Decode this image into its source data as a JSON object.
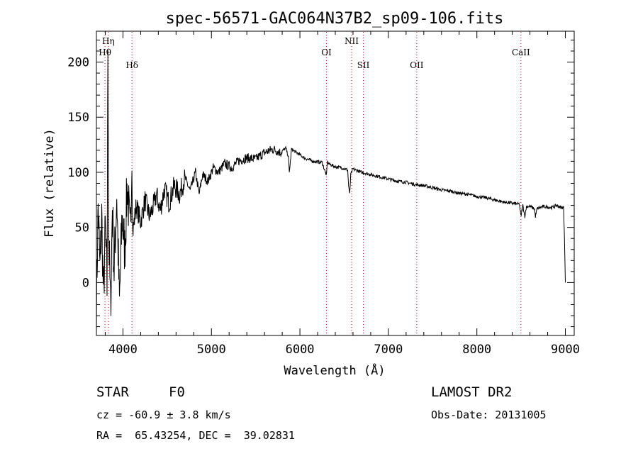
{
  "chart_data": {
    "type": "line",
    "title": "spec-56571-GAC064N37B2_sp09-106.fits",
    "xlabel": "Wavelength (Å)",
    "ylabel": "Flux (relative)",
    "xlim": [
      3700,
      9100
    ],
    "ylim": [
      -48,
      228
    ],
    "x_ticks": [
      4000,
      5000,
      6000,
      7000,
      8000,
      9000
    ],
    "y_ticks": [
      0,
      50,
      100,
      150,
      200
    ],
    "grid": false,
    "series": [
      {
        "x": [
          3700,
          3720,
          3740,
          3760,
          3780,
          3800,
          3820,
          3830,
          3840,
          3860,
          3880,
          3900,
          3930,
          3960,
          3990,
          4020,
          4050,
          4080,
          4101,
          4110,
          4150,
          4200,
          4250,
          4300,
          4340,
          4380,
          4420,
          4470,
          4520,
          4580,
          4640,
          4700,
          4760,
          4820,
          4861,
          4900,
          4960,
          5020,
          5080,
          5150,
          5230,
          5300,
          5400,
          5500,
          5600,
          5700,
          5780,
          5840,
          5870,
          5880,
          5893,
          5905,
          5920,
          5980,
          6050,
          6150,
          6250,
          6300,
          6310,
          6320,
          6400,
          6480,
          6540,
          6550,
          6563,
          6575,
          6600,
          6700,
          6800,
          6900,
          7000,
          7100,
          7200,
          7300,
          7400,
          7500,
          7600,
          7700,
          7800,
          7900,
          8000,
          8100,
          8200,
          8300,
          8400,
          8480,
          8498,
          8520,
          8542,
          8560,
          8600,
          8650,
          8662,
          8680,
          8750,
          8850,
          8900,
          8950,
          8980,
          8990,
          9000
        ],
        "y": [
          -20,
          70,
          10,
          60,
          -15,
          50,
          -5,
          220,
          40,
          -25,
          70,
          10,
          80,
          -20,
          60,
          30,
          90,
          40,
          110,
          45,
          70,
          55,
          75,
          60,
          68,
          80,
          65,
          85,
          72,
          88,
          80,
          95,
          83,
          100,
          80,
          98,
          92,
          104,
          100,
          108,
          104,
          110,
          113,
          112,
          118,
          121,
          118,
          122,
          114,
          100,
          110,
          121,
          120,
          117,
          113,
          110,
          109,
          97,
          110,
          108,
          105,
          104,
          102,
          88,
          80,
          98,
          103,
          100,
          98,
          96,
          94,
          92,
          91,
          89,
          88,
          86,
          84,
          83,
          81,
          80,
          78,
          77,
          75,
          73,
          72,
          71,
          60,
          70,
          60,
          69,
          69,
          67,
          60,
          67,
          69,
          68,
          70,
          68,
          68,
          40,
          0
        ],
        "color": "#000000"
      }
    ],
    "line_markers": [
      {
        "label": "Hη",
        "x": 3835
      },
      {
        "label": "Hθ",
        "x": 3797
      },
      {
        "label": "Hδ",
        "x": 4102
      },
      {
        "label": "OI",
        "x": 6300
      },
      {
        "label": "NII",
        "x": 6584
      },
      {
        "label": "SII",
        "x": 6717
      },
      {
        "label": "OII",
        "x": 7320
      },
      {
        "label": "CaII",
        "x": 8498
      }
    ],
    "marker_color": "#cc0000"
  },
  "info": {
    "object_class": "STAR",
    "subclass": "F0",
    "redshift_line": "cz = -60.9 ± 3.8 km/s",
    "coords_line": "RA =  65.43254, DEC =  39.02831",
    "survey": "LAMOST DR2",
    "obs_date": "Obs-Date: 20131005"
  }
}
